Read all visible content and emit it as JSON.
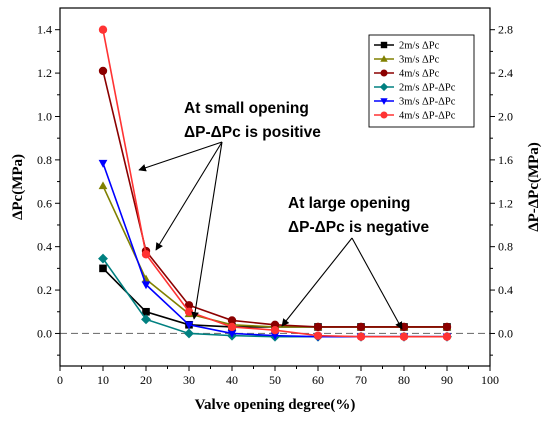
{
  "chart_data": {
    "type": "line",
    "xlabel": "Valve opening degree(%)",
    "ylabel_left": "ΔPc(MPa)",
    "ylabel_right": "ΔP-ΔPc(MPa)",
    "xlim": [
      0,
      100
    ],
    "ylim_left": [
      -0.15,
      1.5
    ],
    "ylim_right": [
      -0.3,
      3.0
    ],
    "x_ticks": [
      0,
      10,
      20,
      30,
      40,
      50,
      60,
      70,
      80,
      90,
      100
    ],
    "y_ticks_left": [
      0.0,
      0.2,
      0.4,
      0.6,
      0.8,
      1.0,
      1.2,
      1.4
    ],
    "y_tick_labels_left": [
      "0.0",
      "0.2",
      "0.4",
      "0.6",
      "0.8",
      "1.0",
      "1.2",
      "1.4"
    ],
    "y_ticks_right": [
      0.0,
      0.4,
      0.8,
      1.2,
      1.6,
      2.0,
      2.4,
      2.8
    ],
    "y_tick_labels_right": [
      "0.0",
      "0.4",
      "0.8",
      "1.2",
      "1.6",
      "2.0",
      "2.4",
      "2.8"
    ],
    "reference_line": {
      "y": 0,
      "style": "dashed"
    },
    "x": [
      10,
      20,
      30,
      40,
      50,
      60,
      70,
      80,
      90
    ],
    "series": [
      {
        "name": "2m/s ΔPc",
        "axis": "left",
        "color": "#000000",
        "marker": "square",
        "values": [
          0.3,
          0.1,
          0.04,
          0.03,
          0.03,
          0.03,
          0.03,
          0.03,
          0.03
        ]
      },
      {
        "name": "3m/s ΔPc",
        "axis": "left",
        "color": "#808000",
        "marker": "triangle-up",
        "values": [
          0.68,
          0.25,
          0.09,
          0.04,
          0.03,
          0.03,
          0.03,
          0.03,
          0.03
        ]
      },
      {
        "name": "4m/s ΔPc",
        "axis": "left",
        "color": "#8b0000",
        "marker": "circle",
        "values": [
          1.21,
          0.38,
          0.13,
          0.06,
          0.04,
          0.03,
          0.03,
          0.03,
          0.03
        ]
      },
      {
        "name": "2m/s ΔP-ΔPc",
        "axis": "right",
        "color": "#008080",
        "marker": "diamond",
        "values": [
          0.69,
          0.13,
          0.0,
          -0.02,
          -0.03,
          -0.03,
          -0.03,
          -0.03,
          -0.03
        ]
      },
      {
        "name": "3m/s ΔP-ΔPc",
        "axis": "right",
        "color": "#0000ff",
        "marker": "triangle-down",
        "values": [
          1.57,
          0.45,
          0.08,
          0.0,
          -0.02,
          -0.03,
          -0.03,
          -0.03,
          -0.03
        ]
      },
      {
        "name": "4m/s ΔP-ΔPc",
        "axis": "right",
        "color": "#ff3333",
        "marker": "circle",
        "values": [
          2.8,
          0.73,
          0.2,
          0.06,
          0.03,
          -0.02,
          -0.03,
          -0.03,
          -0.03
        ]
      }
    ],
    "legend_position": "top-right",
    "annotations": [
      {
        "lines": [
          "At small opening",
          "ΔP-ΔPc is positive"
        ]
      },
      {
        "lines": [
          "At large opening",
          "ΔP-ΔPc is negative"
        ]
      }
    ]
  }
}
